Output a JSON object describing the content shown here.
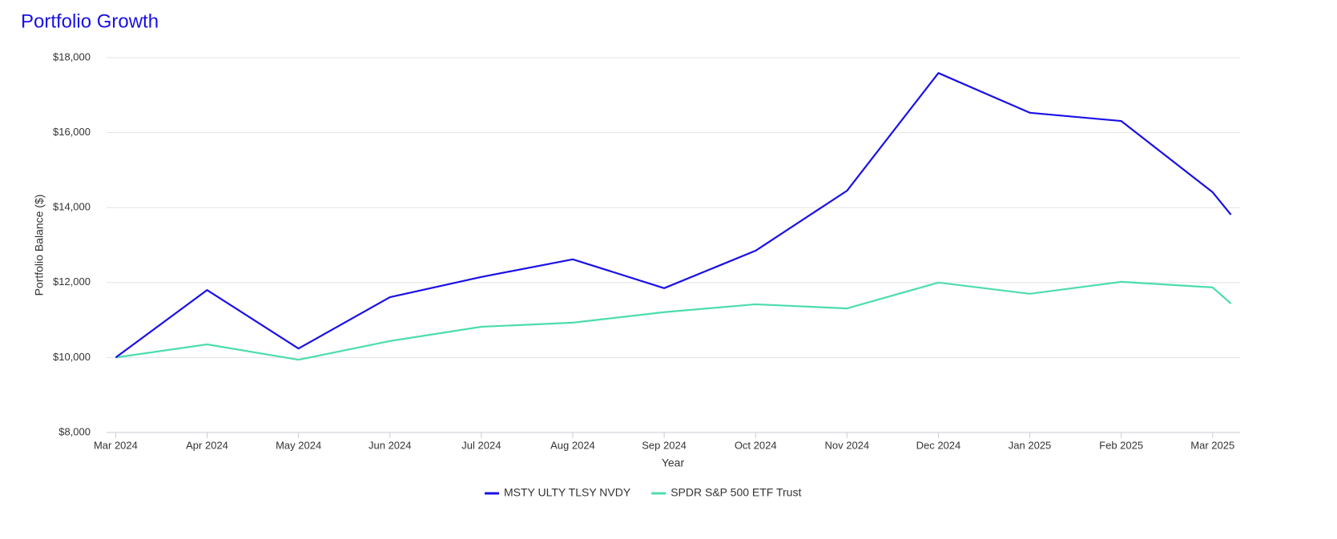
{
  "chart_data": {
    "type": "line",
    "title": "Portfolio Growth",
    "xlabel": "Year",
    "ylabel": "Portfolio Balance ($)",
    "x": [
      0,
      1,
      2,
      3,
      4,
      5,
      6,
      7,
      8,
      9,
      10,
      11,
      12,
      12.2
    ],
    "xlim": [
      -0.1,
      12.3
    ],
    "xticks": [
      {
        "value": 0,
        "label": "Mar 2024"
      },
      {
        "value": 1,
        "label": "Apr 2024"
      },
      {
        "value": 2,
        "label": "May 2024"
      },
      {
        "value": 3,
        "label": "Jun 2024"
      },
      {
        "value": 4,
        "label": "Jul 2024"
      },
      {
        "value": 5,
        "label": "Aug 2024"
      },
      {
        "value": 6,
        "label": "Sep 2024"
      },
      {
        "value": 7,
        "label": "Oct 2024"
      },
      {
        "value": 8,
        "label": "Nov 2024"
      },
      {
        "value": 9,
        "label": "Dec 2024"
      },
      {
        "value": 10,
        "label": "Jan 2025"
      },
      {
        "value": 11,
        "label": "Feb 2025"
      },
      {
        "value": 12,
        "label": "Mar 2025"
      }
    ],
    "ylim": [
      8000,
      18000
    ],
    "yticks": [
      {
        "value": 8000,
        "label": "$8,000"
      },
      {
        "value": 10000,
        "label": "$10,000"
      },
      {
        "value": 12000,
        "label": "$12,000"
      },
      {
        "value": 14000,
        "label": "$14,000"
      },
      {
        "value": 16000,
        "label": "$16,000"
      },
      {
        "value": 18000,
        "label": "$18,000"
      }
    ],
    "grid": true,
    "legend": "bottom",
    "series": [
      {
        "name": "MSTY ULTY TLSY NVDY",
        "color": "#1a10e6",
        "values": [
          10000,
          11800,
          10240,
          11610,
          12150,
          12620,
          11850,
          12850,
          14450,
          17590,
          16530,
          16310,
          14410,
          13810
        ]
      },
      {
        "name": "SPDR S&P 500 ETF Trust",
        "color": "#4ddcae",
        "values": [
          10000,
          10350,
          9940,
          10440,
          10820,
          10930,
          11210,
          11420,
          11310,
          12000,
          11700,
          12020,
          11870,
          11440
        ]
      }
    ]
  }
}
